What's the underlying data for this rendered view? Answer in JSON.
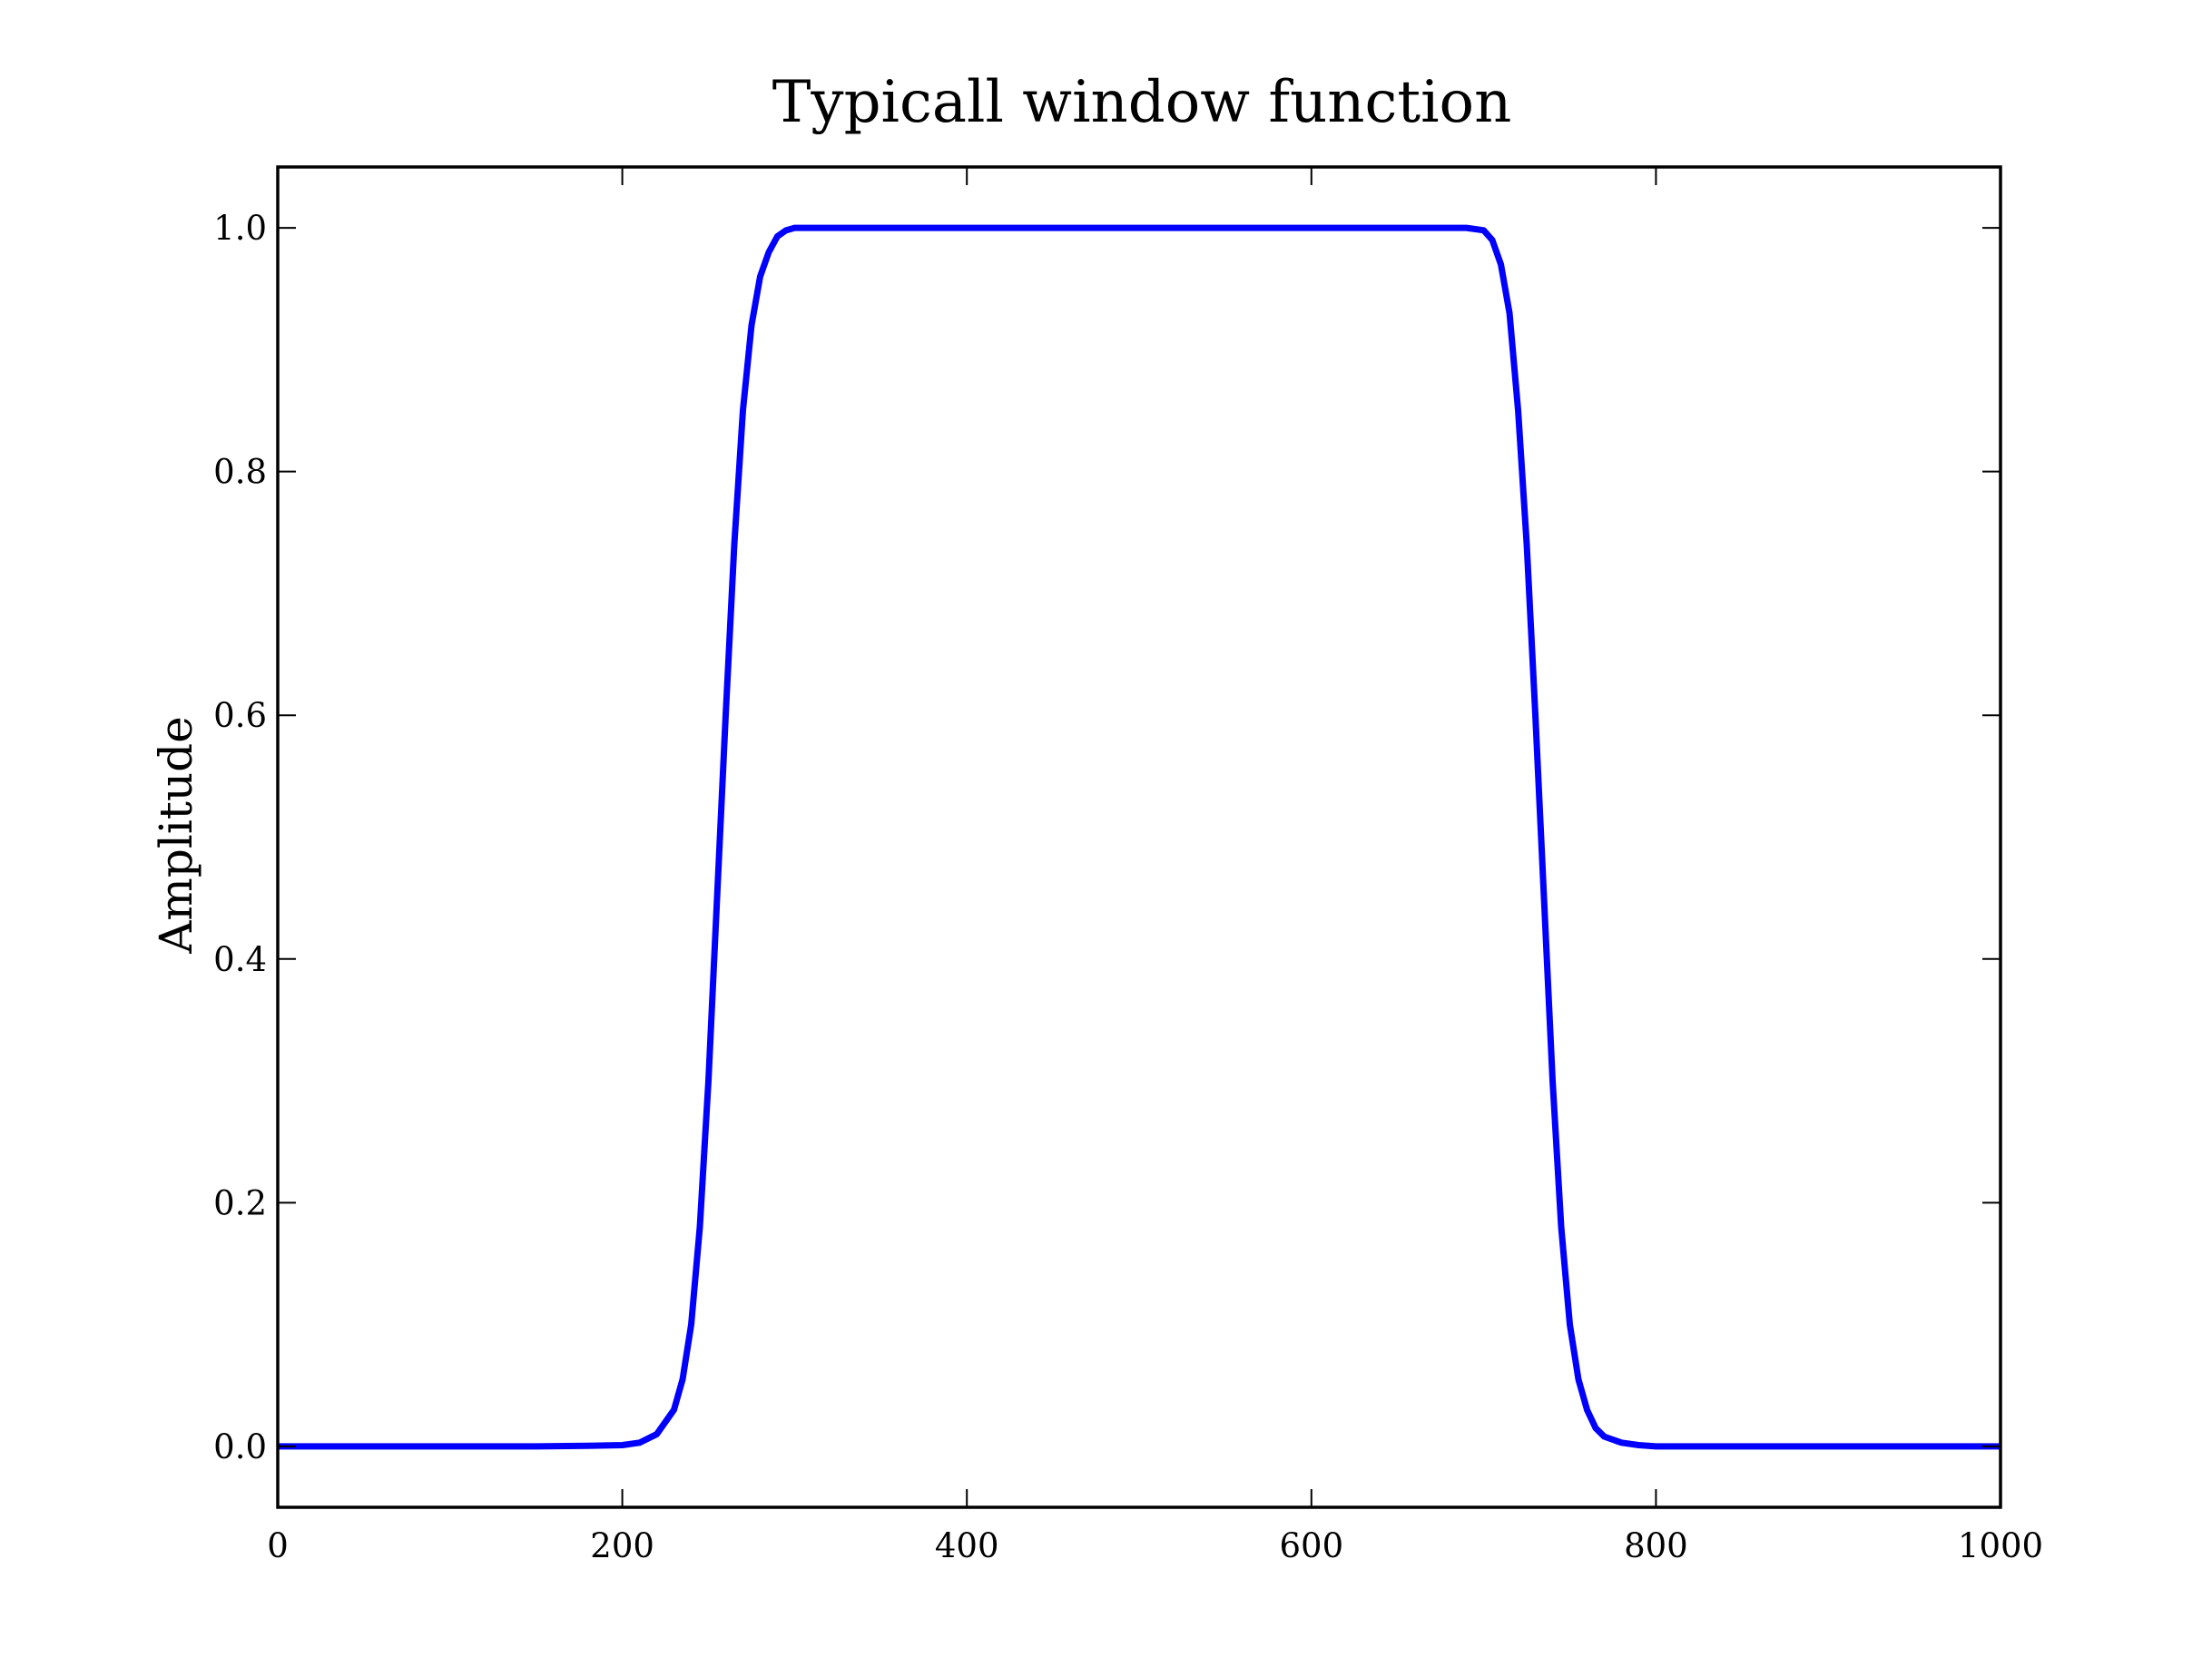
{
  "chart_data": {
    "type": "line",
    "title": "Typicall window function",
    "xlabel": "",
    "ylabel": "Amplitude",
    "xlim": [
      0,
      1000
    ],
    "ylim": [
      -0.05,
      1.05
    ],
    "xticks": [
      0,
      200,
      400,
      600,
      800,
      1000
    ],
    "xtick_labels": [
      "0",
      "200",
      "400",
      "600",
      "800",
      "1000"
    ],
    "yticks": [
      0.0,
      0.2,
      0.4,
      0.6,
      0.8,
      1.0
    ],
    "ytick_labels": [
      "0.0",
      "0.2",
      "0.4",
      "0.6",
      "0.8",
      "1.0"
    ],
    "grid": false,
    "legend": "none",
    "series": [
      {
        "color": "#0000ff",
        "x": [
          0,
          100,
          150,
          180,
          200,
          210,
          220,
          230,
          235,
          240,
          245,
          250,
          255,
          260,
          265,
          270,
          275,
          280,
          285,
          290,
          295,
          300,
          310,
          320,
          400,
          500,
          600,
          680,
          690,
          700,
          705,
          710,
          715,
          720,
          725,
          730,
          735,
          740,
          745,
          750,
          755,
          760,
          765,
          770,
          780,
          790,
          800,
          850,
          900,
          1000
        ],
        "y": [
          0.0,
          0.0,
          0.0,
          0.0005,
          0.001,
          0.003,
          0.01,
          0.03,
          0.055,
          0.1,
          0.18,
          0.3,
          0.45,
          0.6,
          0.74,
          0.85,
          0.92,
          0.96,
          0.98,
          0.993,
          0.998,
          1.0,
          1.0,
          1.0,
          1.0,
          1.0,
          1.0,
          1.0,
          1.0,
          0.998,
          0.99,
          0.97,
          0.93,
          0.85,
          0.74,
          0.6,
          0.45,
          0.3,
          0.18,
          0.1,
          0.055,
          0.03,
          0.015,
          0.008,
          0.003,
          0.001,
          0.0,
          0.0,
          0.0,
          0.0
        ]
      }
    ]
  }
}
